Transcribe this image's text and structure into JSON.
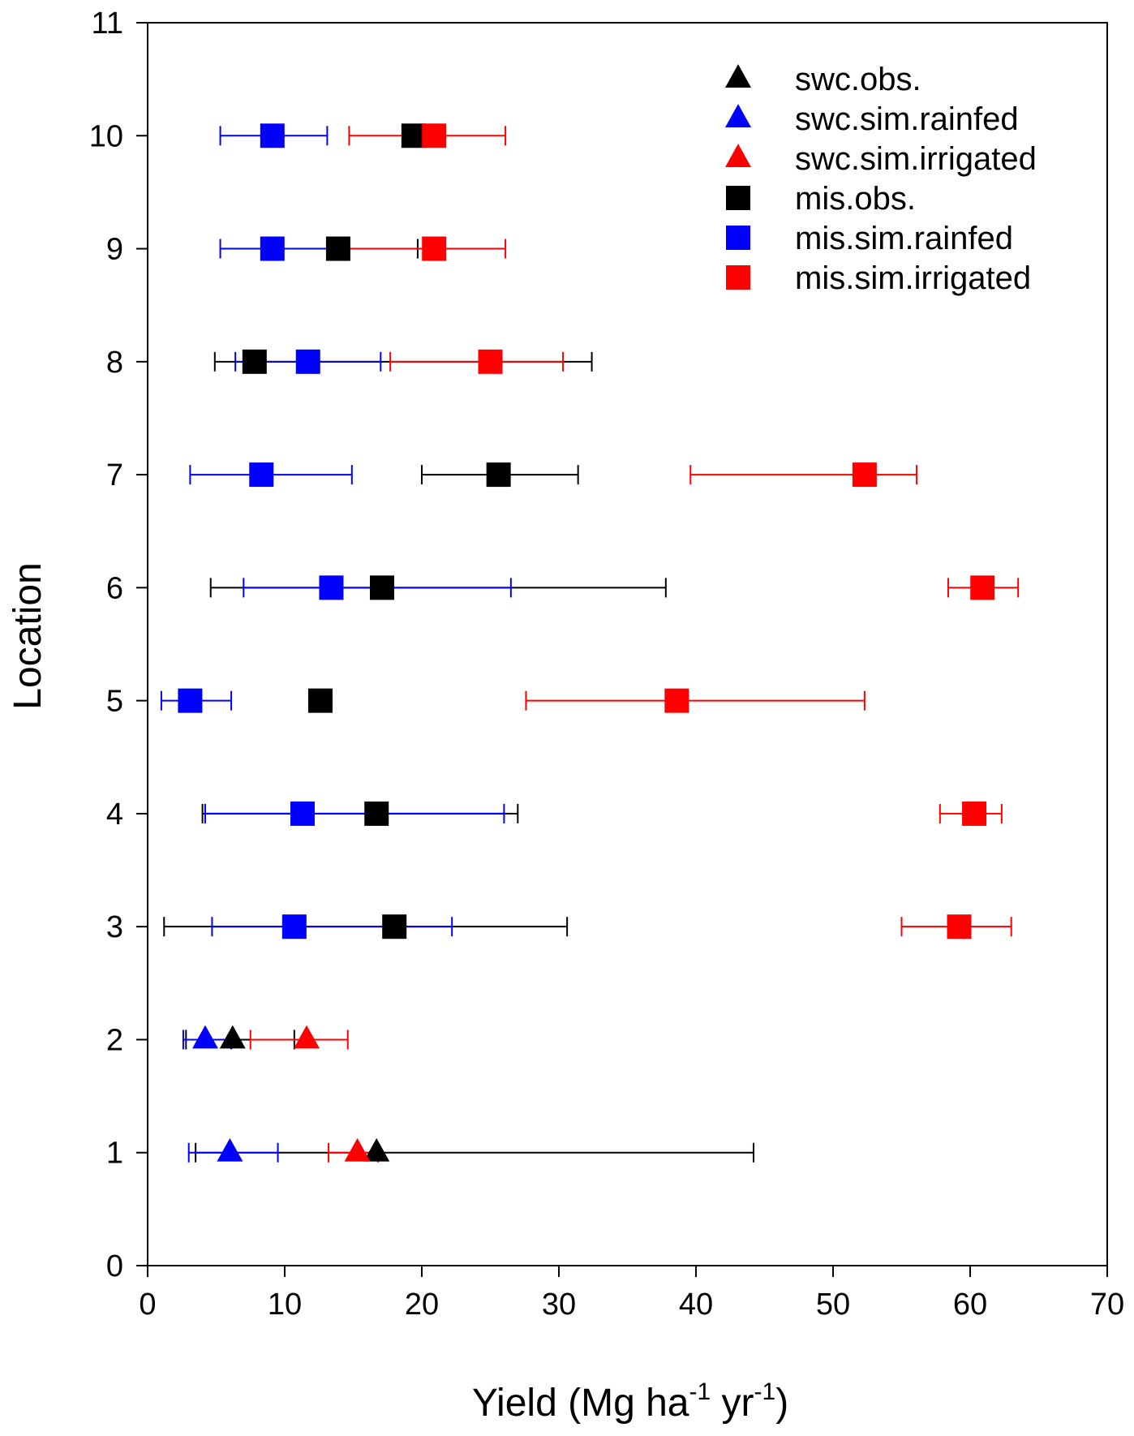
{
  "chart_data": {
    "type": "scatter",
    "xlabel_main": "Yield (Mg ha",
    "xlabel_sup1": "-1",
    "xlabel_mid": " yr",
    "xlabel_sup2": "-1",
    "xlabel_end": ")",
    "ylabel": "Location",
    "xlim": [
      0,
      70
    ],
    "ylim": [
      0,
      11
    ],
    "xticks": [
      0,
      10,
      20,
      30,
      40,
      50,
      60,
      70
    ],
    "yticks": [
      0,
      1,
      2,
      3,
      4,
      5,
      6,
      7,
      8,
      9,
      10,
      11
    ],
    "legend_position": "top-right",
    "series": [
      {
        "name": "swc.obs.",
        "marker": "triangle",
        "color": "#000000",
        "points": [
          {
            "y": 1,
            "x": 16.7,
            "lo": 3.5,
            "hi": 44.2
          },
          {
            "y": 2,
            "x": 6.2,
            "lo": 2.8,
            "hi": 10.7
          }
        ]
      },
      {
        "name": "swc.sim.rainfed",
        "marker": "triangle",
        "color": "#0000ff",
        "points": [
          {
            "y": 1,
            "x": 6.0,
            "lo": 3.0,
            "hi": 9.5
          },
          {
            "y": 2,
            "x": 4.2,
            "lo": 2.6,
            "hi": 6.1
          }
        ]
      },
      {
        "name": "swc.sim.irrigated",
        "marker": "triangle",
        "color": "#ff0000",
        "points": [
          {
            "y": 1,
            "x": 15.3,
            "lo": 13.2,
            "hi": 16.8
          },
          {
            "y": 2,
            "x": 11.6,
            "lo": 7.5,
            "hi": 14.6
          }
        ]
      },
      {
        "name": "mis.obs.",
        "marker": "square",
        "color": "#000000",
        "points": [
          {
            "y": 3,
            "x": 18.0,
            "lo": 1.2,
            "hi": 30.6
          },
          {
            "y": 4,
            "x": 16.7,
            "lo": 4.0,
            "hi": 27.0
          },
          {
            "y": 5,
            "x": 12.6,
            "lo": 12.0,
            "hi": 13.3
          },
          {
            "y": 6,
            "x": 17.1,
            "lo": 4.6,
            "hi": 37.8
          },
          {
            "y": 7,
            "x": 25.6,
            "lo": 20.0,
            "hi": 31.4
          },
          {
            "y": 8,
            "x": 7.8,
            "lo": 4.9,
            "hi": 32.4
          },
          {
            "y": 9,
            "x": 13.9,
            "lo": 8.3,
            "hi": 19.7
          },
          {
            "y": 10,
            "x": 19.4,
            "lo": 19.4,
            "hi": 19.4
          }
        ]
      },
      {
        "name": "mis.sim.rainfed",
        "marker": "square",
        "color": "#0000ff",
        "points": [
          {
            "y": 3,
            "x": 10.7,
            "lo": 4.7,
            "hi": 22.2
          },
          {
            "y": 4,
            "x": 11.3,
            "lo": 4.2,
            "hi": 26.0
          },
          {
            "y": 5,
            "x": 3.1,
            "lo": 1.0,
            "hi": 6.1
          },
          {
            "y": 6,
            "x": 13.4,
            "lo": 7.0,
            "hi": 26.5
          },
          {
            "y": 7,
            "x": 8.3,
            "lo": 3.1,
            "hi": 14.9
          },
          {
            "y": 8,
            "x": 11.7,
            "lo": 6.4,
            "hi": 17.0
          },
          {
            "y": 9,
            "x": 9.1,
            "lo": 5.3,
            "hi": 13.1
          },
          {
            "y": 10,
            "x": 9.1,
            "lo": 5.3,
            "hi": 13.1
          }
        ]
      },
      {
        "name": "mis.sim.irrigated",
        "marker": "square",
        "color": "#ff0000",
        "points": [
          {
            "y": 3,
            "x": 59.2,
            "lo": 55.0,
            "hi": 63.0
          },
          {
            "y": 4,
            "x": 60.3,
            "lo": 57.8,
            "hi": 62.3
          },
          {
            "y": 5,
            "x": 38.6,
            "lo": 27.6,
            "hi": 52.3
          },
          {
            "y": 6,
            "x": 60.9,
            "lo": 58.4,
            "hi": 63.5
          },
          {
            "y": 7,
            "x": 52.3,
            "lo": 39.6,
            "hi": 56.1
          },
          {
            "y": 8,
            "x": 25.0,
            "lo": 17.7,
            "hi": 30.3
          },
          {
            "y": 9,
            "x": 20.9,
            "lo": 14.7,
            "hi": 26.1
          },
          {
            "y": 10,
            "x": 20.9,
            "lo": 14.7,
            "hi": 26.1
          }
        ]
      }
    ]
  }
}
